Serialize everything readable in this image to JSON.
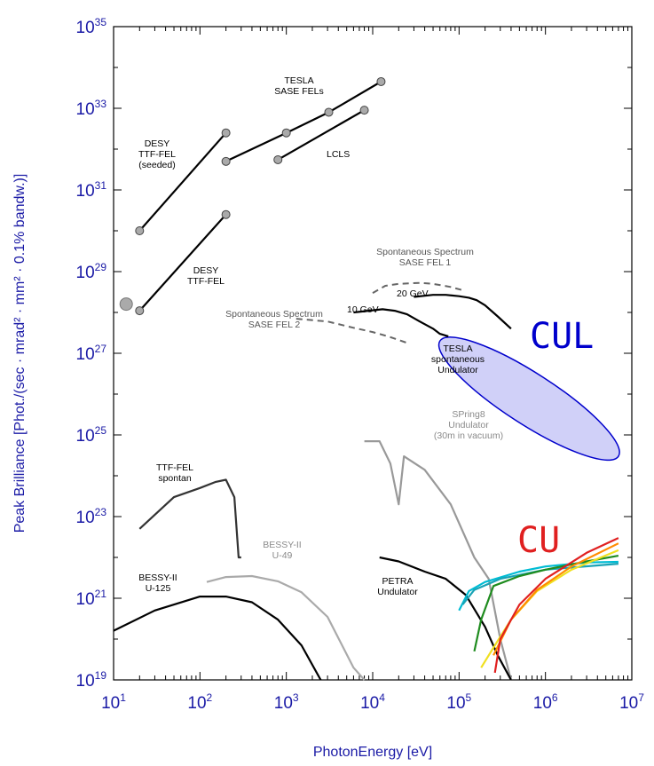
{
  "chart_data": {
    "type": "line",
    "xlabel": "PhotonEnergy [eV]",
    "ylabel": "Peak Brilliance [Phot./(sec · mrad² · mm² · 0.1% bandw.)]",
    "x_scale": "log",
    "y_scale": "log",
    "xlim": [
      10,
      10000000
    ],
    "ylim": [
      1e+19,
      1e+35
    ],
    "grid": false,
    "x_ticks": [
      {
        "base": "10",
        "exp": "1",
        "value": 10
      },
      {
        "base": "10",
        "exp": "2",
        "value": 100
      },
      {
        "base": "10",
        "exp": "3",
        "value": 1000
      },
      {
        "base": "10",
        "exp": "4",
        "value": 10000
      },
      {
        "base": "10",
        "exp": "5",
        "value": 100000
      },
      {
        "base": "10",
        "exp": "6",
        "value": 1000000
      },
      {
        "base": "10",
        "exp": "7",
        "value": 10000000
      }
    ],
    "y_ticks": [
      {
        "base": "10",
        "exp": "19",
        "value": 1e+19
      },
      {
        "base": "10",
        "exp": "21",
        "value": 1e+21
      },
      {
        "base": "10",
        "exp": "23",
        "value": 1e+23
      },
      {
        "base": "10",
        "exp": "25",
        "value": 1e+25
      },
      {
        "base": "10",
        "exp": "27",
        "value": 1e+27
      },
      {
        "base": "10",
        "exp": "29",
        "value": 1e+29
      },
      {
        "base": "10",
        "exp": "31",
        "value": 1e+31
      },
      {
        "base": "10",
        "exp": "33",
        "value": 1e+33
      },
      {
        "base": "10",
        "exp": "35",
        "value": 1e+35
      }
    ],
    "series": [
      {
        "label_ref": "desy_seeded",
        "style": "marker-line",
        "color": "#000000",
        "points": [
          [
            20,
            1e+30
          ],
          [
            200,
            2.5e+32
          ]
        ]
      },
      {
        "label_ref": "desy_ttf",
        "style": "marker-line",
        "color": "#000000",
        "points": [
          [
            20,
            1.1e+28
          ],
          [
            200,
            2.5e+30
          ]
        ]
      },
      {
        "label_ref": "tesla_sase",
        "style": "marker-line",
        "color": "#000000",
        "points": [
          [
            200,
            5e+31
          ],
          [
            1000,
            2.5e+32
          ],
          [
            3100,
            8e+32
          ],
          [
            12500,
            4.5e+33
          ]
        ]
      },
      {
        "label_ref": "lcls",
        "style": "marker-line",
        "color": "#000000",
        "points": [
          [
            800,
            5.5e+31
          ],
          [
            8000,
            9e+32
          ]
        ]
      },
      {
        "label_ref": "sase_sp1",
        "style": "dashed",
        "color": "#666666",
        "points": [
          [
            10000,
            3e+28
          ],
          [
            14000,
            4.5e+28
          ],
          [
            20000,
            5e+28
          ],
          [
            35000,
            5.3e+28
          ],
          [
            50000,
            5e+28
          ],
          [
            80000,
            4.2e+28
          ],
          [
            110000,
            3.5e+28
          ]
        ]
      },
      {
        "label_ref": "sase_sp2",
        "style": "dashed",
        "color": "#666666",
        "points": [
          [
            1300,
            7e+27
          ],
          [
            3000,
            6e+27
          ],
          [
            6000,
            4.2e+27
          ],
          [
            10000,
            3.3e+27
          ],
          [
            15000,
            2.6e+27
          ],
          [
            25000,
            1.8e+27
          ]
        ]
      },
      {
        "label_ref": "gev20",
        "style": "solid",
        "color": "#000000",
        "points": [
          [
            30000,
            2.4e+28
          ],
          [
            50000,
            2.7e+28
          ],
          [
            70000,
            2.7e+28
          ],
          [
            100000,
            2.5e+28
          ],
          [
            130000,
            2.3e+28
          ],
          [
            160000,
            2e+28
          ],
          [
            200000,
            1.5e+28
          ],
          [
            280000,
            8e+27
          ],
          [
            400000,
            4e+27
          ]
        ]
      },
      {
        "label_ref": "gev10",
        "style": "solid",
        "color": "#000000",
        "points": [
          [
            6000,
            1e+28
          ],
          [
            9000,
            1.1e+28
          ],
          [
            13000,
            1.2e+28
          ],
          [
            18000,
            1.1e+28
          ],
          [
            25000,
            9e+27
          ],
          [
            35000,
            6e+27
          ],
          [
            50000,
            4e+27
          ],
          [
            60000,
            3e+27
          ],
          [
            75000,
            2.6e+27
          ]
        ]
      },
      {
        "label_ref": "sp8",
        "style": "solid",
        "color": "#999999",
        "points": [
          [
            8000,
            7e+24
          ],
          [
            12000,
            7e+24
          ],
          [
            16000,
            2e+24
          ],
          [
            20000,
            2e+23
          ],
          [
            23000,
            3e+24
          ],
          [
            40000,
            1.4e+24
          ],
          [
            80000,
            2e+23
          ],
          [
            150000,
            1e+22
          ],
          [
            220000,
            3e+21
          ],
          [
            300000,
            1e+20
          ],
          [
            400000,
            1e+19
          ]
        ]
      },
      {
        "label_ref": "ttf_spontan",
        "style": "solid",
        "color": "#333333",
        "points": [
          [
            20,
            5e+22
          ],
          [
            50,
            3e+23
          ],
          [
            100,
            5e+23
          ],
          [
            150,
            7e+23
          ],
          [
            200,
            8e+23
          ],
          [
            250,
            3e+23
          ],
          [
            280,
            1e+22
          ],
          [
            300,
            1e+22
          ]
        ]
      },
      {
        "label_ref": "bessy49",
        "style": "solid",
        "color": "#aaaaaa",
        "points": [
          [
            120,
            2.5e+21
          ],
          [
            200,
            3.3e+21
          ],
          [
            400,
            3.5e+21
          ],
          [
            800,
            2.6e+21
          ],
          [
            1500,
            1.4e+21
          ],
          [
            3000,
            3.5e+20
          ],
          [
            6000,
            2e+19
          ],
          [
            8000,
            1e+19
          ]
        ]
      },
      {
        "label_ref": "bessy125",
        "style": "solid",
        "color": "#000000",
        "points": [
          [
            10,
            1.6e+20
          ],
          [
            30,
            5e+20
          ],
          [
            100,
            1.1e+21
          ],
          [
            200,
            1.1e+21
          ],
          [
            400,
            8e+20
          ],
          [
            800,
            3e+20
          ],
          [
            1500,
            7e+19
          ],
          [
            2500,
            1e+19
          ]
        ]
      },
      {
        "label_ref": "petra",
        "style": "solid",
        "color": "#000000",
        "points": [
          [
            12000,
            1e+22
          ],
          [
            20000,
            8e+21
          ],
          [
            40000,
            4.5e+21
          ],
          [
            70000,
            3e+21
          ],
          [
            120000,
            1.2e+21
          ],
          [
            200000,
            2e+20
          ],
          [
            280000,
            4e+19
          ],
          [
            400000,
            1e+19
          ]
        ]
      },
      {
        "label_ref": "cu",
        "style": "solid",
        "color": "#00bcd4",
        "points": [
          [
            100000,
            5e+20
          ],
          [
            130000,
            1.5e+21
          ],
          [
            200000,
            2.5e+21
          ],
          [
            500000,
            4.5e+21
          ],
          [
            1000000,
            6e+21
          ],
          [
            3000000,
            7.5e+21
          ],
          [
            7000000,
            7.8e+21
          ]
        ]
      },
      {
        "label_ref": "cu",
        "style": "solid",
        "color": "#1aa3b5",
        "points": [
          [
            110000,
            7e+20
          ],
          [
            150000,
            1.6e+21
          ],
          [
            300000,
            3e+21
          ],
          [
            1000000,
            5e+21
          ],
          [
            7000000,
            7e+21
          ]
        ]
      },
      {
        "label_ref": "cu",
        "style": "solid",
        "color": "#1f8c1f",
        "points": [
          [
            150000,
            5e+19
          ],
          [
            180000,
            3e+20
          ],
          [
            250000,
            2e+21
          ],
          [
            500000,
            3.5e+21
          ],
          [
            1000000,
            5e+21
          ],
          [
            3000000,
            8e+21
          ],
          [
            7000000,
            1.1e+22
          ]
        ]
      },
      {
        "label_ref": "cu",
        "style": "solid",
        "color": "#f0e020",
        "points": [
          [
            180000,
            2e+19
          ],
          [
            260000,
            7e+19
          ],
          [
            400000,
            3e+20
          ],
          [
            800000,
            1.5e+21
          ],
          [
            2000000,
            5e+21
          ],
          [
            7000000,
            1.5e+22
          ]
        ]
      },
      {
        "label_ref": "cu",
        "style": "solid",
        "color": "#ff8c00",
        "points": [
          [
            250000,
            4e+19
          ],
          [
            400000,
            3e+20
          ],
          [
            800000,
            1.6e+21
          ],
          [
            2000000,
            6e+21
          ],
          [
            7000000,
            2.2e+22
          ]
        ]
      },
      {
        "label_ref": "cu",
        "style": "solid",
        "color": "#e02020",
        "points": [
          [
            260000,
            1.5e+19
          ],
          [
            300000,
            1e+20
          ],
          [
            500000,
            7e+20
          ],
          [
            1000000,
            3e+21
          ],
          [
            3000000,
            1.3e+22
          ],
          [
            7000000,
            3e+22
          ]
        ]
      }
    ],
    "cul_region": {
      "x_from": 60000,
      "x_to": 7000000,
      "y_from": 3e+24,
      "y_to": 2e+27,
      "fill": "#d0d0f8",
      "stroke": "#0000cc"
    },
    "marker": {
      "x": 14,
      "y": 1.6e+28
    },
    "annotations": {
      "tesla": [
        "TESLA",
        "SASE FELs"
      ],
      "desy_seeded": [
        "DESY",
        "TTF-FEL",
        "(seeded)"
      ],
      "lcls": [
        "LCLS"
      ],
      "desy_ttf": [
        "DESY",
        "TTF-FEL"
      ],
      "sase_sp1": [
        "Spontaneous Spectrum",
        "SASE FEL 1"
      ],
      "gev20": [
        "20 GeV"
      ],
      "gev10": [
        "10 GeV"
      ],
      "sase_sp2": [
        "Spontaneous Spectrum",
        "SASE FEL 2"
      ],
      "tesla_und": [
        "TESLA",
        "spontaneous",
        "Undulator"
      ],
      "sp8": [
        "SPring8",
        "Undulator",
        "(30m in vacuum)"
      ],
      "ttf_spontan": [
        "TTF-FEL",
        "spontan"
      ],
      "bessy49": [
        "BESSY-II",
        "U-49"
      ],
      "bessy125": [
        "BESSY-II",
        "U-125"
      ],
      "petra": [
        "PETRA",
        "Undulator"
      ],
      "cul": "CUL",
      "cu": "CU"
    },
    "colors": {
      "axis_text": "#1a1aa6",
      "cul_text": "#0000cc",
      "cu_text": "#e02020"
    }
  }
}
